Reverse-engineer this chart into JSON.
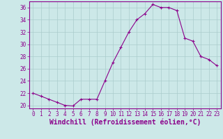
{
  "x": [
    0,
    1,
    2,
    3,
    4,
    5,
    6,
    7,
    8,
    9,
    10,
    11,
    12,
    13,
    14,
    15,
    16,
    17,
    18,
    19,
    20,
    21,
    22,
    23
  ],
  "y": [
    22.0,
    21.5,
    21.0,
    20.5,
    20.0,
    19.9,
    21.0,
    21.0,
    21.0,
    24.0,
    27.0,
    29.5,
    32.0,
    34.0,
    35.0,
    36.5,
    36.0,
    36.0,
    35.5,
    31.0,
    30.5,
    28.0,
    27.5,
    26.5
  ],
  "line_color": "#8B008B",
  "marker": "+",
  "background_color": "#cce8e8",
  "grid_color": "#aacccc",
  "xlabel": "Windchill (Refroidissement éolien,°C)",
  "xlabel_color": "#8B008B",
  "ylim": [
    19.5,
    37.0
  ],
  "xlim": [
    -0.5,
    23.5
  ],
  "yticks": [
    20,
    22,
    24,
    26,
    28,
    30,
    32,
    34,
    36
  ],
  "xticks": [
    0,
    1,
    2,
    3,
    4,
    5,
    6,
    7,
    8,
    9,
    10,
    11,
    12,
    13,
    14,
    15,
    16,
    17,
    18,
    19,
    20,
    21,
    22,
    23
  ],
  "tick_color": "#8B008B",
  "tick_fontsize": 5.5,
  "xlabel_fontsize": 7.0,
  "spine_color": "#8B008B"
}
